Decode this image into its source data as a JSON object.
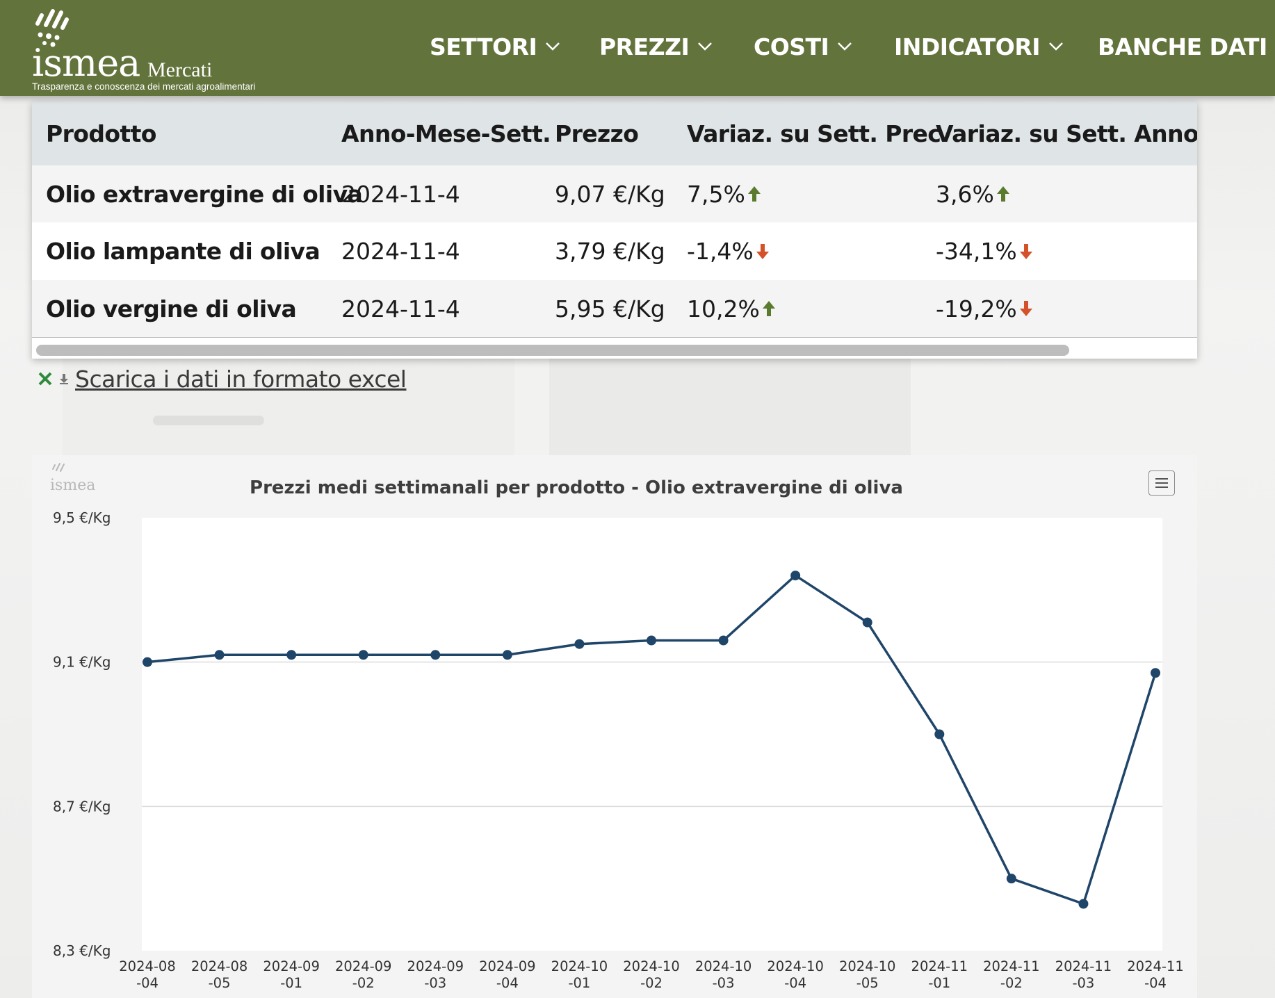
{
  "header": {
    "logo": {
      "wordmark": "ismea",
      "sub": "Mercati",
      "tagline": "Trasparenza e conoscenza dei mercati agroalimentari"
    },
    "nav": [
      {
        "label": "SETTORI",
        "icon": "chevron-down-icon"
      },
      {
        "label": "PREZZI",
        "icon": "chevron-down-icon"
      },
      {
        "label": "COSTI",
        "icon": "chevron-down-icon"
      },
      {
        "label": "INDICATORI",
        "icon": "chevron-down-icon"
      },
      {
        "label": "BANCHE DATI",
        "icon": "chevron-down-icon"
      }
    ],
    "color": "#63733c"
  },
  "table": {
    "columns": [
      "Prodotto",
      "Anno-Mese-Sett.",
      "Prezzo",
      "Variaz. su Sett. Prec.",
      "Variaz. su Sett. Anno Pre"
    ],
    "rows": [
      {
        "product": "Olio extravergine di oliva",
        "period": "2024-11-4",
        "price": "9,07 €/Kg",
        "var_prev": "7,5%",
        "var_prev_dir": "up",
        "var_year": "3,6%",
        "var_year_dir": "up"
      },
      {
        "product": "Olio lampante di oliva",
        "period": "2024-11-4",
        "price": "3,79 €/Kg",
        "var_prev": "-1,4%",
        "var_prev_dir": "down",
        "var_year": "-34,1%",
        "var_year_dir": "down"
      },
      {
        "product": "Olio vergine di oliva",
        "period": "2024-11-4",
        "price": "5,95 €/Kg",
        "var_prev": "10,2%",
        "var_prev_dir": "up",
        "var_year": "-19,2%",
        "var_year_dir": "down"
      }
    ],
    "colors": {
      "up": "#5a7a2e",
      "down": "#d4522a"
    }
  },
  "excel": {
    "label": "Scarica i dati in formato excel",
    "icons": [
      "excel-icon",
      "download-icon"
    ]
  },
  "chart": {
    "watermark": "ismea",
    "menu_icon": "hamburger-menu-icon"
  },
  "chart_data": {
    "type": "line",
    "title": "Prezzi medi settimanali per prodotto - Olio extravergine di oliva",
    "xlabel": "",
    "ylabel": "",
    "x": [
      "2024-08-04",
      "2024-08-05",
      "2024-09-01",
      "2024-09-02",
      "2024-09-03",
      "2024-09-04",
      "2024-10-01",
      "2024-10-02",
      "2024-10-03",
      "2024-10-04",
      "2024-10-05",
      "2024-11-01",
      "2024-11-02",
      "2024-11-03",
      "2024-11-04"
    ],
    "x_tick_labels": [
      [
        "2024-08",
        "-04"
      ],
      [
        "2024-08",
        "-05"
      ],
      [
        "2024-09",
        "-01"
      ],
      [
        "2024-09",
        "-02"
      ],
      [
        "2024-09",
        "-03"
      ],
      [
        "2024-09",
        "-04"
      ],
      [
        "2024-10",
        "-01"
      ],
      [
        "2024-10",
        "-02"
      ],
      [
        "2024-10",
        "-03"
      ],
      [
        "2024-10",
        "-04"
      ],
      [
        "2024-10",
        "-05"
      ],
      [
        "2024-11",
        "-01"
      ],
      [
        "2024-11",
        "-02"
      ],
      [
        "2024-11",
        "-03"
      ],
      [
        "2024-11",
        "-04"
      ]
    ],
    "series": [
      {
        "values": [
          9.1,
          9.12,
          9.12,
          9.12,
          9.12,
          9.12,
          9.15,
          9.16,
          9.16,
          9.34,
          9.21,
          8.9,
          8.5,
          8.43,
          9.07
        ]
      }
    ],
    "ylim": [
      8.3,
      9.5
    ],
    "y_ticks": [
      {
        "value": 9.5,
        "label": "9,5 €/Kg"
      },
      {
        "value": 9.1,
        "label": "9,1 €/Kg"
      },
      {
        "value": 8.7,
        "label": "8,7 €/Kg"
      },
      {
        "value": 8.3,
        "label": "8,3 €/Kg"
      }
    ],
    "grid": true,
    "legend": "none",
    "line_color": "#1f4569"
  }
}
